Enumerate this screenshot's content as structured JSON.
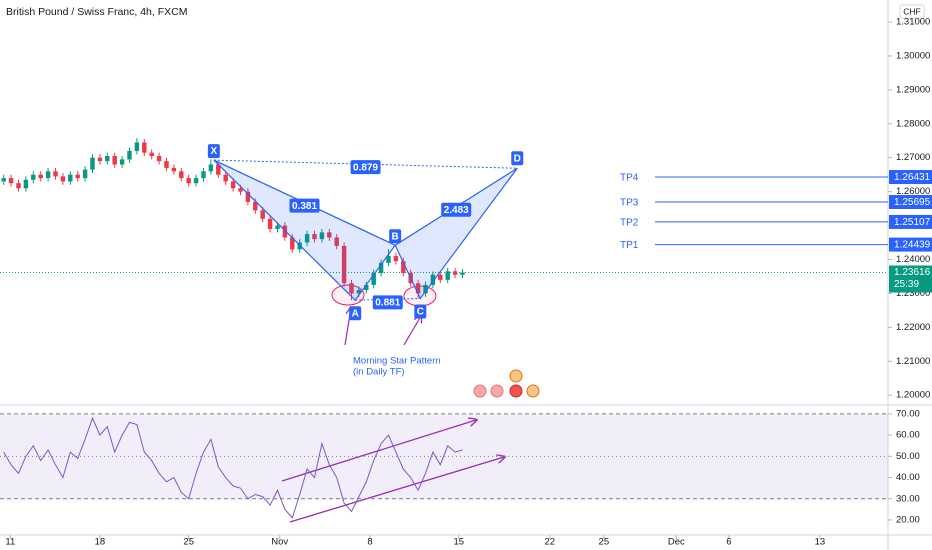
{
  "chart_data": [
    {
      "type": "candlestick",
      "title": "British Pound / Swiss Franc, 4h, FXCM",
      "currency": "CHF",
      "up_color": "#089981",
      "down_color": "#f23645",
      "xlim": [
        0,
        120
      ],
      "ylim": [
        1.1971,
        1.3165
      ],
      "yticks": [
        {
          "value": 1.2,
          "label": "1.20000"
        },
        {
          "value": 1.21,
          "label": "1.21000"
        },
        {
          "value": 1.22,
          "label": "1.22000"
        },
        {
          "value": 1.23,
          "label": "1.23000"
        },
        {
          "value": 1.24,
          "label": "1.24000"
        },
        {
          "value": 1.25,
          "label": "1.25000"
        },
        {
          "value": 1.26,
          "label": "1.26000"
        },
        {
          "value": 1.27,
          "label": "1.27000"
        },
        {
          "value": 1.28,
          "label": "1.28000"
        },
        {
          "value": 1.29,
          "label": "1.29000"
        },
        {
          "value": 1.3,
          "label": "1.30000"
        },
        {
          "value": 1.31,
          "label": "1.31000"
        }
      ],
      "ohlc": [
        [
          1.263,
          1.265,
          1.262,
          1.264
        ],
        [
          1.264,
          1.265,
          1.2615,
          1.2625
        ],
        [
          1.2625,
          1.2635,
          1.26,
          1.261
        ],
        [
          1.261,
          1.2645,
          1.26,
          1.2635
        ],
        [
          1.2635,
          1.266,
          1.2625,
          1.265
        ],
        [
          1.265,
          1.266,
          1.263,
          1.264
        ],
        [
          1.264,
          1.267,
          1.263,
          1.266
        ],
        [
          1.266,
          1.267,
          1.2635,
          1.2645
        ],
        [
          1.2645,
          1.2655,
          1.262,
          1.263
        ],
        [
          1.263,
          1.266,
          1.262,
          1.265
        ],
        [
          1.265,
          1.266,
          1.263,
          1.264
        ],
        [
          1.264,
          1.2675,
          1.263,
          1.2665
        ],
        [
          1.2665,
          1.271,
          1.2655,
          1.27
        ],
        [
          1.27,
          1.271,
          1.268,
          1.269
        ],
        [
          1.269,
          1.2715,
          1.268,
          1.2705
        ],
        [
          1.2705,
          1.2715,
          1.267,
          1.268
        ],
        [
          1.268,
          1.2705,
          1.267,
          1.2695
        ],
        [
          1.2695,
          1.273,
          1.2685,
          1.272
        ],
        [
          1.272,
          1.2758,
          1.271,
          1.2745
        ],
        [
          1.2745,
          1.2755,
          1.2705,
          1.2715
        ],
        [
          1.2715,
          1.2725,
          1.2695,
          1.2705
        ],
        [
          1.2705,
          1.2715,
          1.268,
          1.269
        ],
        [
          1.269,
          1.27,
          1.266,
          1.267
        ],
        [
          1.267,
          1.268,
          1.265,
          1.266
        ],
        [
          1.266,
          1.267,
          1.263,
          1.264
        ],
        [
          1.264,
          1.265,
          1.2615,
          1.2625
        ],
        [
          1.2625,
          1.265,
          1.2615,
          1.264
        ],
        [
          1.264,
          1.267,
          1.263,
          1.266
        ],
        [
          1.266,
          1.2695,
          1.265,
          1.268
        ],
        [
          1.268,
          1.269,
          1.264,
          1.265
        ],
        [
          1.265,
          1.266,
          1.262,
          1.263
        ],
        [
          1.263,
          1.264,
          1.26,
          1.261
        ],
        [
          1.261,
          1.262,
          1.259,
          1.26
        ],
        [
          1.26,
          1.261,
          1.256,
          1.257
        ],
        [
          1.257,
          1.258,
          1.2535,
          1.2545
        ],
        [
          1.2545,
          1.2555,
          1.251,
          1.252
        ],
        [
          1.252,
          1.253,
          1.248,
          1.249
        ],
        [
          1.249,
          1.251,
          1.248,
          1.25
        ],
        [
          1.25,
          1.251,
          1.2455,
          1.2465
        ],
        [
          1.2465,
          1.2475,
          1.242,
          1.243
        ],
        [
          1.243,
          1.246,
          1.242,
          1.245
        ],
        [
          1.245,
          1.2485,
          1.244,
          1.2475
        ],
        [
          1.2475,
          1.2485,
          1.245,
          1.246
        ],
        [
          1.246,
          1.249,
          1.245,
          1.248
        ],
        [
          1.248,
          1.249,
          1.2455,
          1.2465
        ],
        [
          1.2465,
          1.2475,
          1.243,
          1.244
        ],
        [
          1.244,
          1.245,
          1.232,
          1.233
        ],
        [
          1.233,
          1.234,
          1.228,
          1.23
        ],
        [
          1.23,
          1.232,
          1.229,
          1.231
        ],
        [
          1.231,
          1.2335,
          1.23,
          1.2325
        ],
        [
          1.2325,
          1.237,
          1.2315,
          1.236
        ],
        [
          1.236,
          1.24,
          1.235,
          1.239
        ],
        [
          1.239,
          1.243,
          1.238,
          1.241
        ],
        [
          1.241,
          1.242,
          1.2385,
          1.2395
        ],
        [
          1.2395,
          1.2405,
          1.235,
          1.236
        ],
        [
          1.236,
          1.237,
          1.232,
          1.233
        ],
        [
          1.233,
          1.234,
          1.2285,
          1.23
        ],
        [
          1.23,
          1.2335,
          1.229,
          1.2325
        ],
        [
          1.2325,
          1.2365,
          1.2315,
          1.2355
        ],
        [
          1.2355,
          1.2365,
          1.233,
          1.234
        ],
        [
          1.234,
          1.2375,
          1.233,
          1.2365
        ],
        [
          1.2365,
          1.2375,
          1.2345,
          1.2355
        ],
        [
          1.2355,
          1.2372,
          1.2345,
          1.23616
        ]
      ],
      "last_price": 1.23616,
      "countdown": "25:39",
      "pattern": [
        {
          "label": "X",
          "x": 28.9,
          "y": 1.2693
        },
        {
          "label": "A",
          "x": 48,
          "y": 1.228
        },
        {
          "label": "B",
          "x": 53.4,
          "y": 1.2442
        },
        {
          "label": "C",
          "x": 56.8,
          "y": 1.2285
        },
        {
          "label": "D",
          "x": 69.9,
          "y": 1.2669
        }
      ],
      "ratios": [
        0.381,
        0.881,
        2.483,
        0.879
      ],
      "targets": [
        {
          "name": "TP4",
          "value": 1.26431
        },
        {
          "name": "TP3",
          "value": 1.25695
        },
        {
          "name": "TP2",
          "value": 1.25107
        },
        {
          "name": "TP1",
          "value": 1.24439
        }
      ],
      "annotation": [
        "Morning Star Pattern",
        "(in Daily TF)"
      ]
    },
    {
      "type": "line",
      "color": "#7e57c2",
      "xlim": [
        0,
        120
      ],
      "ylim": [
        12.9,
        74.2
      ],
      "yticks": [
        {
          "value": 20,
          "label": "20.00"
        },
        {
          "value": 30,
          "label": "30.00"
        },
        {
          "value": 40,
          "label": "40.00"
        },
        {
          "value": 50,
          "label": "50.00"
        },
        {
          "value": 60,
          "label": "60.00"
        },
        {
          "value": 70,
          "label": "70.00"
        }
      ],
      "bands": [
        30,
        50,
        70
      ],
      "values": [
        52,
        46,
        42,
        50,
        55,
        48,
        53,
        46,
        40,
        52,
        49,
        58,
        68,
        60,
        64,
        52,
        60,
        66,
        65,
        52,
        48,
        42,
        38,
        40,
        33,
        30,
        42,
        52,
        58,
        45,
        40,
        36,
        35,
        30,
        32,
        31,
        27,
        34,
        25,
        21,
        32,
        44,
        40,
        56,
        46,
        40,
        28,
        24,
        31,
        38,
        48,
        56,
        60,
        52,
        44,
        40,
        34,
        42,
        52,
        46,
        55,
        52,
        53
      ],
      "xticks": [
        {
          "value": 1.4,
          "label": "11"
        },
        {
          "value": 13.5,
          "label": "18"
        },
        {
          "value": 25.5,
          "label": "25"
        },
        {
          "value": 37.8,
          "label": "Nov"
        },
        {
          "value": 50,
          "label": "8"
        },
        {
          "value": 62,
          "label": "15"
        },
        {
          "value": 74.3,
          "label": "22"
        },
        {
          "value": 81.6,
          "label": "25"
        },
        {
          "value": 91.4,
          "label": "Dec"
        },
        {
          "value": 98.5,
          "label": "6"
        },
        {
          "value": 110.8,
          "label": "13"
        }
      ]
    }
  ]
}
